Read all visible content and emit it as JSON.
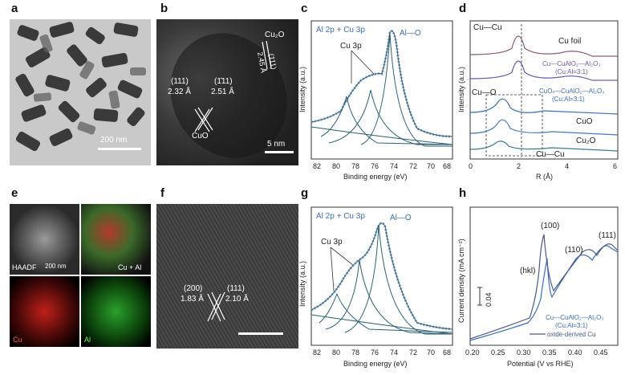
{
  "labels": [
    "a",
    "b",
    "c",
    "d",
    "e",
    "f",
    "g",
    "h"
  ],
  "panel_a": {
    "scale": "200 nm"
  },
  "panel_b": {
    "annot_left_index": "(111)",
    "annot_left_dist": "2.32 Å",
    "annot_mid_index": "(1̄11)",
    "annot_mid_dist": "2.51 Å",
    "phase": "CuO",
    "phase2": "Cu₂O",
    "annot_rot_dist": "2.45 Å",
    "annot_rot_index": "(111)",
    "scale": "5 nm"
  },
  "panel_c": {
    "title": "Al 2p + Cu 3p",
    "peak_label": "Al—O",
    "cu3p": "Cu 3p",
    "xlabel": "Binding energy (eV)",
    "ylabel": "Intensity (a.u.)",
    "ticks": [
      "82",
      "80",
      "78",
      "76",
      "74",
      "72",
      "70",
      "68"
    ]
  },
  "panel_d": {
    "cucu_top": "Cu—Cu",
    "cuo_label": "Cu—O",
    "cucu_bottom": "Cu—Cu",
    "s1": "Cu foil",
    "s2": "Cu—CuAlO₂—Al₂O₃",
    "s2b": "(Cu:Al=3:1)",
    "s3": "CuOₓ—CuAlO₂—Al₂O₃",
    "s3b": "(Cu:Al=3:1)",
    "s4": "CuO",
    "s5": "Cu₂O",
    "xlabel": "R (Å)",
    "ylabel": "Intensity (a.u.)",
    "ticks": [
      "0",
      "2",
      "4",
      "6"
    ]
  },
  "panel_e": {
    "haadf": "HAADF",
    "scale": "200 nm",
    "cuai": "Cu + Al",
    "cu": "Cu",
    "al": "Al"
  },
  "panel_f": {
    "l_index": "(200)",
    "l_dist": "1.83 Å",
    "r_index": "(111)",
    "r_dist": "2.10 Å"
  },
  "panel_g": {
    "title": "Al 2p + Cu 3p",
    "peak_label": "Al—O",
    "cu3p": "Cu 3p",
    "xlabel": "Binding energy (eV)",
    "ylabel": "Intensity (a.u.)",
    "ticks": [
      "82",
      "80",
      "78",
      "76",
      "74",
      "72",
      "70",
      "68"
    ]
  },
  "panel_h": {
    "p100": "(100)",
    "p110": "(110)",
    "p111": "(111)",
    "phkl": "(hkl)",
    "scalebar": "0.04",
    "legend1": "Cu—CuAlO₂—Al₂O₃",
    "legend1b": "(Cu:Al=3:1)",
    "legend2": "oxide-derived Cu",
    "xlabel": "Potential (V vs RHE)",
    "ylabel": "Current density (mA cm⁻²)",
    "ticks": [
      "0.20",
      "0.25",
      "0.30",
      "0.35",
      "0.40",
      "0.45"
    ]
  },
  "colors": {
    "blue": "#3e6fb4",
    "fit": "#2b5f73",
    "grey": "#888888"
  }
}
